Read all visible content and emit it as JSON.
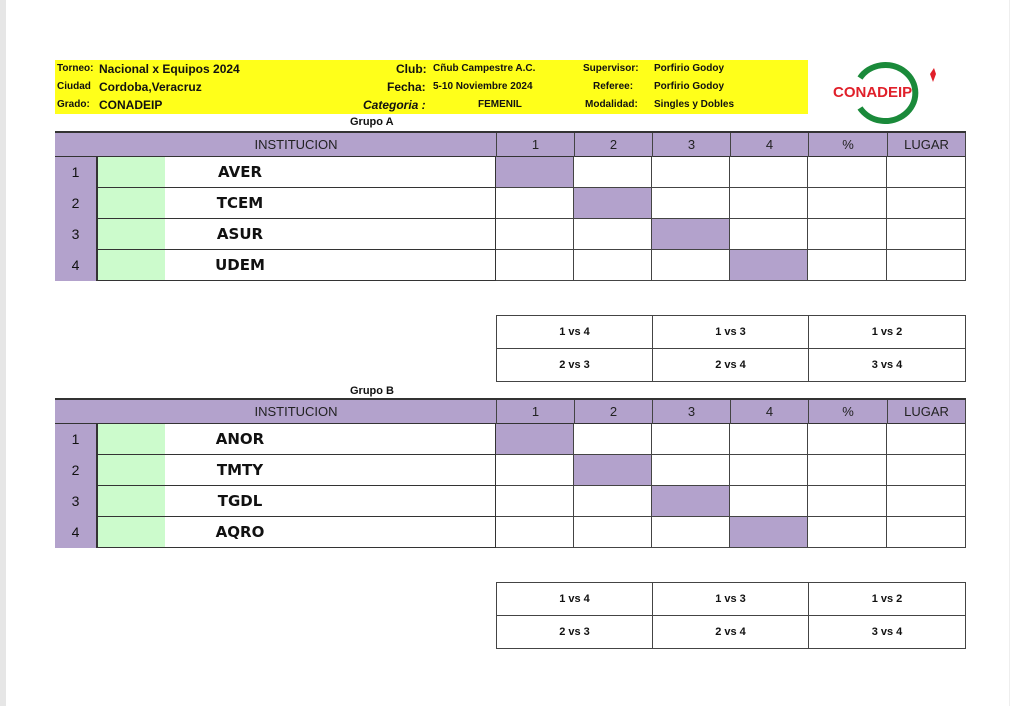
{
  "header": {
    "torneo_label": "Torneo:",
    "torneo": "Nacional x Equipos 2024",
    "ciudad_label": "Ciudad",
    "ciudad": "Cordoba,Veracruz",
    "grado_label": "Grado:",
    "grado": "CONADEIP",
    "club_label": "Club:",
    "club": "Cñub Campestre A.C.",
    "fecha_label": "Fecha:",
    "fecha": "5-10  Noviembre 2024",
    "categoria_label": "Categoria :",
    "categoria": "FEMENIL",
    "supervisor_label": "Supervisor:",
    "supervisor": "Porfirio Godoy",
    "referee_label": "Referee:",
    "referee": "Porfirio Godoy",
    "modalidad_label": "Modalidad:",
    "modalidad": "Singles y Dobles",
    "logo_text": "CONADEIP"
  },
  "columns": [
    "INSTITUCION",
    "1",
    "2",
    "3",
    "4",
    "%",
    "LUGAR"
  ],
  "groups": [
    {
      "title": "Grupo  A",
      "teams": [
        {
          "n": "1",
          "name": "AVER"
        },
        {
          "n": "2",
          "name": "TCEM"
        },
        {
          "n": "3",
          "name": "ASUR"
        },
        {
          "n": "4",
          "name": "UDEM"
        }
      ],
      "matches": [
        [
          "1  vs  4",
          "1  vs  3",
          "1  vs  2"
        ],
        [
          "2  vs  3",
          "2  vs  4",
          "3  vs  4"
        ]
      ]
    },
    {
      "title": "Grupo  B",
      "teams": [
        {
          "n": "1",
          "name": "ANOR"
        },
        {
          "n": "2",
          "name": "TMTY"
        },
        {
          "n": "3",
          "name": "TGDL"
        },
        {
          "n": "4",
          "name": "AQRO"
        }
      ],
      "matches": [
        [
          "1  vs  4",
          "1  vs  3",
          "1  vs  2"
        ],
        [
          "2  vs  3",
          "2  vs  4",
          "3  vs  4"
        ]
      ]
    }
  ],
  "colors": {
    "header_band": "#ffff1a",
    "table_header": "#b3a2cc",
    "green_cell": "#ccfbcc",
    "logo_red": "#e0202a",
    "logo_green": "#1a8a3a"
  }
}
